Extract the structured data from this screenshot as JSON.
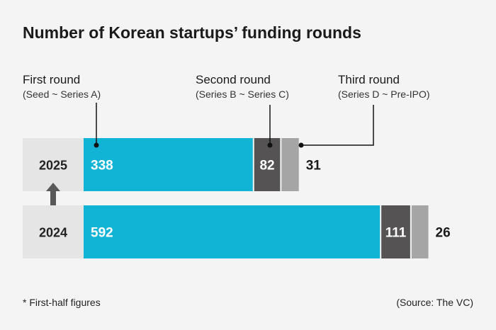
{
  "chart_data": {
    "type": "bar",
    "orientation": "horizontal",
    "stacked": true,
    "title": "Number of Korean startups’ funding rounds",
    "categories": [
      "2025",
      "2024"
    ],
    "series": [
      {
        "name": "First round",
        "subtitle": "(Seed ~ Series A)",
        "values": [
          338,
          592
        ],
        "color": "#12b4d6"
      },
      {
        "name": "Second round",
        "subtitle": "(Series B ~ Series C)",
        "values": [
          82,
          111
        ],
        "color": "#555353"
      },
      {
        "name": "Third round",
        "subtitle": "(Series D ~ Pre-IPO)",
        "values": [
          31,
          26
        ],
        "color": "#a5a5a5"
      }
    ],
    "footnote": "* First-half figures",
    "source": "(Source: The VC)",
    "colors": {
      "year_box": "#e5e5e5",
      "arrow": "#595959"
    }
  }
}
